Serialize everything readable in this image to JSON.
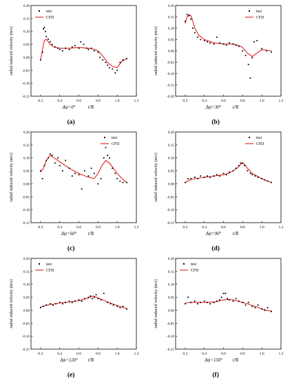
{
  "figure": {
    "panels": [
      {
        "letter": "(a)",
        "angle_label": "Δψ=0°"
      },
      {
        "letter": "(b)",
        "angle_label": "Δψ=30°"
      },
      {
        "letter": "(c)",
        "angle_label": "Δψ=60°"
      },
      {
        "letter": "(d)",
        "angle_label": "Δψ=90°"
      },
      {
        "letter": "(e)",
        "angle_label": "Δψ=120°"
      },
      {
        "letter": "(f)",
        "angle_label": "Δψ=150°"
      }
    ]
  },
  "colors": {
    "test": "#000000",
    "cfd": "#e02020",
    "axis": "#000000"
  },
  "chart_data": [
    {
      "type": "scatter+line",
      "panel": "(a)",
      "xlabel": "r/R",
      "ylabel": "radial induced velocity (m/s)",
      "xlim": [
        0.1,
        1.2
      ],
      "ylim": [
        -0.15,
        0.2
      ],
      "xticks": [
        "0.2",
        "0.4",
        "0.6",
        "0.8",
        "1.0",
        "1.2"
      ],
      "yticks": [
        "-0.15",
        "-0.10",
        "-0.05",
        "0.00",
        "0.05",
        "0.10",
        "0.15",
        "0.20"
      ],
      "legend": {
        "position": "top-left",
        "entries": [
          "test",
          "CFD"
        ]
      },
      "series": [
        {
          "name": "test",
          "kind": "scatter",
          "x": [
            0.2,
            0.22,
            0.23,
            0.24,
            0.25,
            0.26,
            0.28,
            0.3,
            0.32,
            0.35,
            0.38,
            0.4,
            0.43,
            0.46,
            0.5,
            0.53,
            0.56,
            0.6,
            0.62,
            0.65,
            0.68,
            0.7,
            0.73,
            0.76,
            0.8,
            0.82,
            0.85,
            0.88,
            0.9,
            0.92,
            0.95,
            0.98,
            1.0,
            1.03,
            1.06,
            1.1
          ],
          "y": [
            -0.01,
            0.02,
            0.11,
            0.115,
            0.1,
            0.08,
            0.07,
            0.06,
            0.05,
            0.04,
            0.035,
            0.03,
            0.025,
            0.035,
            0.03,
            0.04,
            0.045,
            0.035,
            0.06,
            0.05,
            0.035,
            0.03,
            0.035,
            0.025,
            0.02,
            0.0,
            -0.01,
            -0.02,
            -0.03,
            -0.04,
            -0.045,
            -0.06,
            -0.05,
            -0.02,
            -0.01,
            -0.005
          ]
        },
        {
          "name": "CFD",
          "kind": "line",
          "x": [
            0.2,
            0.22,
            0.24,
            0.26,
            0.28,
            0.3,
            0.34,
            0.4,
            0.5,
            0.6,
            0.7,
            0.75,
            0.8,
            0.85,
            0.9,
            0.95,
            1.0,
            1.05,
            1.1
          ],
          "y": [
            -0.01,
            0.03,
            0.065,
            0.07,
            0.06,
            0.05,
            0.04,
            0.035,
            0.035,
            0.038,
            0.035,
            0.032,
            0.025,
            0.005,
            -0.02,
            -0.035,
            -0.04,
            -0.015,
            -0.005
          ]
        }
      ]
    },
    {
      "type": "scatter+line",
      "panel": "(b)",
      "xlabel": "r/R",
      "ylabel": "radial induced velocity (m/s)",
      "xlim": [
        0.1,
        1.2
      ],
      "ylim": [
        -0.2,
        0.2
      ],
      "xticks": [
        "0.2",
        "0.4",
        "0.6",
        "0.8",
        "1.0",
        "1.2"
      ],
      "yticks": [
        "-0.20",
        "-0.15",
        "-0.10",
        "-0.05",
        "0.00",
        "0.05",
        "0.10",
        "0.15",
        "0.20"
      ],
      "legend": {
        "position": "top-right",
        "entries": [
          "test",
          "CFD"
        ]
      },
      "series": [
        {
          "name": "test",
          "kind": "scatter",
          "x": [
            0.2,
            0.22,
            0.24,
            0.26,
            0.28,
            0.3,
            0.33,
            0.36,
            0.4,
            0.43,
            0.46,
            0.5,
            0.53,
            0.56,
            0.6,
            0.63,
            0.66,
            0.7,
            0.73,
            0.76,
            0.8,
            0.83,
            0.86,
            0.88,
            0.9,
            0.92,
            0.95,
            1.0,
            1.05,
            1.1
          ],
          "y": [
            0.13,
            0.16,
            0.155,
            0.14,
            0.1,
            0.08,
            0.06,
            0.05,
            0.045,
            0.04,
            0.035,
            0.03,
            0.06,
            0.035,
            0.03,
            0.025,
            0.035,
            0.03,
            0.025,
            0.02,
            0.0,
            -0.02,
            -0.06,
            -0.12,
            -0.03,
            0.04,
            0.045,
            0.01,
            0.0,
            -0.005
          ]
        },
        {
          "name": "CFD",
          "kind": "line",
          "x": [
            0.2,
            0.22,
            0.24,
            0.26,
            0.28,
            0.3,
            0.34,
            0.4,
            0.5,
            0.6,
            0.7,
            0.75,
            0.8,
            0.85,
            0.9,
            0.95,
            1.0,
            1.05,
            1.1
          ],
          "y": [
            0.12,
            0.15,
            0.16,
            0.155,
            0.13,
            0.1,
            0.07,
            0.05,
            0.035,
            0.03,
            0.03,
            0.025,
            0.015,
            -0.01,
            -0.025,
            -0.01,
            0.005,
            0.003,
            0.0
          ]
        }
      ]
    },
    {
      "type": "scatter+line",
      "panel": "(c)",
      "xlabel": "r/R",
      "ylabel": "radial induced velocity (m/s)",
      "xlim": [
        0.1,
        1.2
      ],
      "ylim": [
        -0.15,
        0.2
      ],
      "xticks": [
        "0.2",
        "0.4",
        "0.6",
        "0.8",
        "1.0",
        "1.2"
      ],
      "yticks": [
        "-0.15",
        "-0.10",
        "-0.05",
        "0.00",
        "0.05",
        "0.10",
        "0.15",
        "0.20"
      ],
      "legend": {
        "position": "top-right",
        "entries": [
          "test",
          "CFD"
        ]
      },
      "series": [
        {
          "name": "test",
          "kind": "scatter",
          "x": [
            0.2,
            0.22,
            0.24,
            0.26,
            0.28,
            0.3,
            0.32,
            0.35,
            0.38,
            0.4,
            0.43,
            0.46,
            0.5,
            0.53,
            0.56,
            0.6,
            0.63,
            0.66,
            0.7,
            0.73,
            0.76,
            0.8,
            0.83,
            0.86,
            0.88,
            0.9,
            0.92,
            0.95,
            0.98,
            1.0,
            1.03,
            1.06,
            1.1
          ],
          "y": [
            0.05,
            0.02,
            0.07,
            0.09,
            0.1,
            0.115,
            0.11,
            0.08,
            0.1,
            0.07,
            0.05,
            0.09,
            0.06,
            0.03,
            0.04,
            0.035,
            -0.02,
            0.05,
            0.03,
            0.06,
            0.04,
            0.0,
            0.02,
            0.1,
            0.14,
            0.11,
            0.1,
            0.06,
            0.04,
            0.02,
            0.01,
            0.005,
            0.005
          ]
        },
        {
          "name": "CFD",
          "kind": "line",
          "x": [
            0.2,
            0.23,
            0.26,
            0.3,
            0.34,
            0.4,
            0.5,
            0.6,
            0.7,
            0.76,
            0.8,
            0.84,
            0.88,
            0.92,
            0.96,
            1.0,
            1.05,
            1.1
          ],
          "y": [
            0.045,
            0.06,
            0.09,
            0.11,
            0.1,
            0.085,
            0.06,
            0.04,
            0.025,
            0.02,
            0.04,
            0.07,
            0.09,
            0.08,
            0.06,
            0.04,
            0.02,
            0.005
          ]
        }
      ]
    },
    {
      "type": "scatter+line",
      "panel": "(d)",
      "xlabel": "r/R",
      "ylabel": "radial induced velocity (m/s)",
      "xlim": [
        0.1,
        1.2
      ],
      "ylim": [
        -0.15,
        0.2
      ],
      "xticks": [
        "0.2",
        "0.4",
        "0.6",
        "0.8",
        "1.0",
        "1.2"
      ],
      "yticks": [
        "-0.15",
        "-0.10",
        "-0.05",
        "0.00",
        "0.05",
        "0.10",
        "0.15",
        "0.20"
      ],
      "legend": {
        "position": "top-right",
        "entries": [
          "test",
          "CFD"
        ]
      },
      "series": [
        {
          "name": "test",
          "kind": "scatter",
          "x": [
            0.2,
            0.23,
            0.26,
            0.3,
            0.33,
            0.36,
            0.4,
            0.43,
            0.46,
            0.5,
            0.53,
            0.56,
            0.6,
            0.63,
            0.66,
            0.7,
            0.73,
            0.76,
            0.78,
            0.8,
            0.82,
            0.85,
            0.88,
            0.9,
            0.93,
            0.96,
            1.0,
            1.03,
            1.06,
            1.1
          ],
          "y": [
            0.005,
            0.02,
            0.02,
            0.025,
            0.02,
            0.03,
            0.025,
            0.03,
            0.025,
            0.03,
            0.035,
            0.03,
            0.04,
            0.035,
            0.045,
            0.05,
            0.06,
            0.07,
            0.08,
            0.08,
            0.07,
            0.05,
            0.04,
            0.035,
            0.03,
            0.025,
            0.02,
            0.015,
            0.01,
            0.005
          ]
        },
        {
          "name": "CFD",
          "kind": "line",
          "x": [
            0.2,
            0.25,
            0.3,
            0.4,
            0.5,
            0.6,
            0.65,
            0.7,
            0.74,
            0.78,
            0.8,
            0.82,
            0.85,
            0.9,
            0.95,
            1.0,
            1.05,
            1.1
          ],
          "y": [
            0.005,
            0.015,
            0.02,
            0.025,
            0.03,
            0.035,
            0.04,
            0.05,
            0.06,
            0.075,
            0.08,
            0.075,
            0.06,
            0.04,
            0.03,
            0.02,
            0.012,
            0.005
          ]
        }
      ]
    },
    {
      "type": "scatter+line",
      "panel": "(e)",
      "xlabel": "r/R",
      "ylabel": "radial induced velocity (m/s)",
      "xlim": [
        0.1,
        1.2
      ],
      "ylim": [
        -0.15,
        0.2
      ],
      "xticks": [
        "0.2",
        "0.4",
        "0.6",
        "0.8",
        "1.0",
        "1.2"
      ],
      "yticks": [
        "-0.15",
        "-0.10",
        "-0.05",
        "0.00",
        "0.05",
        "0.10",
        "0.15",
        "0.20"
      ],
      "legend": {
        "position": "top-left",
        "entries": [
          "test",
          "CFD"
        ]
      },
      "series": [
        {
          "name": "test",
          "kind": "scatter",
          "x": [
            0.2,
            0.23,
            0.26,
            0.3,
            0.33,
            0.36,
            0.4,
            0.43,
            0.46,
            0.5,
            0.53,
            0.56,
            0.6,
            0.63,
            0.66,
            0.7,
            0.72,
            0.74,
            0.76,
            0.78,
            0.8,
            0.83,
            0.86,
            0.9,
            0.93,
            0.96,
            1.0,
            1.03,
            1.06,
            1.1
          ],
          "y": [
            0.01,
            0.015,
            0.02,
            0.025,
            0.02,
            0.025,
            0.03,
            0.025,
            0.03,
            0.035,
            0.03,
            0.035,
            0.04,
            0.035,
            0.045,
            0.05,
            0.055,
            0.045,
            0.05,
            0.06,
            0.045,
            0.04,
            0.065,
            0.03,
            0.025,
            0.02,
            0.015,
            0.01,
            0.015,
            0.005
          ]
        },
        {
          "name": "CFD",
          "kind": "line",
          "x": [
            0.2,
            0.25,
            0.3,
            0.4,
            0.5,
            0.6,
            0.65,
            0.7,
            0.75,
            0.8,
            0.85,
            0.9,
            0.95,
            1.0,
            1.05,
            1.1
          ],
          "y": [
            0.012,
            0.018,
            0.022,
            0.028,
            0.032,
            0.037,
            0.042,
            0.048,
            0.055,
            0.048,
            0.04,
            0.032,
            0.025,
            0.018,
            0.012,
            0.006
          ]
        }
      ]
    },
    {
      "type": "scatter+line",
      "panel": "(f)",
      "xlabel": "r/R",
      "ylabel": "radial induced velocity (m/s)",
      "xlim": [
        0.1,
        1.2
      ],
      "ylim": [
        -0.15,
        0.2
      ],
      "xticks": [
        "0.2",
        "0.4",
        "0.6",
        "0.8",
        "1.0",
        "1.2"
      ],
      "yticks": [
        "-0.15",
        "-0.10",
        "-0.05",
        "0.00",
        "0.05",
        "0.10",
        "0.15",
        "0.20"
      ],
      "legend": {
        "position": "top-left",
        "entries": [
          "test",
          "CFD"
        ]
      },
      "series": [
        {
          "name": "test",
          "kind": "scatter",
          "x": [
            0.2,
            0.23,
            0.26,
            0.3,
            0.33,
            0.36,
            0.4,
            0.43,
            0.46,
            0.5,
            0.53,
            0.56,
            0.58,
            0.6,
            0.62,
            0.64,
            0.66,
            0.7,
            0.73,
            0.76,
            0.8,
            0.83,
            0.86,
            0.9,
            0.93,
            0.96,
            1.0,
            1.03,
            1.06,
            1.1
          ],
          "y": [
            0.025,
            0.05,
            0.03,
            0.035,
            0.025,
            0.03,
            0.035,
            0.03,
            0.025,
            0.03,
            0.035,
            0.04,
            0.05,
            0.065,
            0.065,
            0.045,
            0.04,
            0.035,
            0.045,
            0.035,
            0.03,
            0.02,
            0.03,
            0.015,
            0.01,
            0.02,
            0.005,
            0.0,
            0.01,
            -0.005
          ]
        },
        {
          "name": "CFD",
          "kind": "line",
          "x": [
            0.2,
            0.25,
            0.3,
            0.4,
            0.5,
            0.55,
            0.6,
            0.65,
            0.7,
            0.75,
            0.8,
            0.85,
            0.9,
            0.95,
            1.0,
            1.05,
            1.1
          ],
          "y": [
            0.028,
            0.03,
            0.03,
            0.03,
            0.032,
            0.035,
            0.04,
            0.042,
            0.04,
            0.035,
            0.03,
            0.025,
            0.018,
            0.012,
            0.005,
            0.0,
            -0.003
          ]
        }
      ]
    }
  ]
}
